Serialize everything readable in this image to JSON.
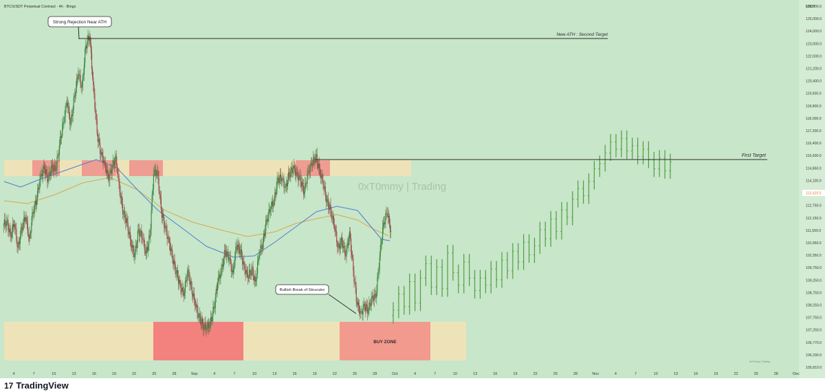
{
  "header": {
    "symbol_line": "BTC/USDT Perpetual Contract · 4h · Bingx",
    "currency": "USDT"
  },
  "brand": {
    "logo_mark": "17",
    "logo_text": "TradingView",
    "watermark": "0xT0mmy | Trading",
    "small_credit": "0xT0mmy | Trading"
  },
  "colors": {
    "background": "#c8e6c9",
    "zone_tan": "#eee3b8",
    "zone_red": "#ef8f8b",
    "zone_red_strong": "#f3827f",
    "ma_blue": "#4a7fd1",
    "ma_orange": "#d9a64e",
    "candle_up": "#3a8a43",
    "candle_down": "#9a4a4a",
    "projection": "#4e9d42",
    "line": "#2b2b2b",
    "price_tag": "#e8773a"
  },
  "chart_data": {
    "type": "candlestick",
    "title": "BTC/USDT Perpetual Contract · 4h · Bingx",
    "y_axis": {
      "unit": "USDT",
      "ylim": [
        105810,
        126000
      ],
      "ticks": [
        "126,000.0",
        "125,000.0",
        "124,000.0",
        "123,000.0",
        "122,000.0",
        "121,200.0",
        "120,400.0",
        "119,600.0",
        "118,800.0",
        "118,000.0",
        "117,200.0",
        "116,400.0",
        "115,600.0",
        "114,850.0",
        "114,100.0",
        "113,420.5",
        "112,750.0",
        "112,150.0",
        "111,550.0",
        "110,950.0",
        "110,350.0",
        "109,750.0",
        "109,250.0",
        "108,750.0",
        "108,250.0",
        "107,750.0",
        "107,250.0",
        "106,770.0",
        "106,290.0",
        "105,810.0"
      ]
    },
    "x_axis": {
      "ticks": [
        "4",
        "7",
        "10",
        "13",
        "16",
        "19",
        "22",
        "25",
        "28",
        "Sep",
        "4",
        "7",
        "10",
        "13",
        "16",
        "19",
        "22",
        "25",
        "28",
        "Oct",
        "4",
        "7",
        "10",
        "13",
        "16",
        "19",
        "22",
        "25",
        "28",
        "Nov",
        "4",
        "7",
        "10",
        "13",
        "16",
        "19",
        "22",
        "25",
        "28",
        "Dec"
      ]
    },
    "current_price": "113,420.5",
    "levels": [
      {
        "label": "New ATH : Second Target",
        "price": 124350
      },
      {
        "label": "First Target",
        "price": 117250
      }
    ],
    "annotations": [
      {
        "label": "Strong Rejection Near ATH"
      },
      {
        "label": "Bullish Break of Strucutre"
      },
      {
        "label": "BUY ZONE"
      }
    ],
    "zones": [
      {
        "name": "resistance-band",
        "from": 116250,
        "to": 117300
      },
      {
        "name": "support-band",
        "from": 106250,
        "to": 108450
      }
    ],
    "candle_closes": [
      114000,
      113200,
      113800,
      112500,
      113600,
      114200,
      113000,
      114500,
      115200,
      116600,
      116900,
      116300,
      117100,
      116800,
      118200,
      119500,
      120600,
      119400,
      121000,
      122200,
      121500,
      123800,
      124300,
      121600,
      118900,
      117700,
      117300,
      116300,
      117000,
      117600,
      115600,
      114400,
      113900,
      112600,
      112100,
      113500,
      113000,
      112200,
      113100,
      116600,
      116800,
      114600,
      113600,
      113000,
      111900,
      111100,
      110500,
      109800,
      111200,
      110300,
      109300,
      108700,
      108200,
      107900,
      108300,
      109100,
      110500,
      111300,
      112300,
      111900,
      111100,
      112600,
      112300,
      111500,
      110800,
      111300,
      110600,
      112100,
      112800,
      114100,
      114600,
      115200,
      116400,
      116300,
      115900,
      116600,
      116900,
      116700,
      116200,
      115600,
      116800,
      117100,
      117600,
      116900,
      116000,
      115100,
      114600,
      113600,
      112500,
      112900,
      112000,
      113400,
      111200,
      109300,
      108900,
      109200,
      109000,
      109800,
      109700,
      112000,
      113900,
      114400,
      113420
    ],
    "projection_closes": [
      109000,
      109900,
      109200,
      110600,
      109400,
      110800,
      111600,
      110300,
      111400,
      110200,
      112200,
      111100,
      110400,
      111700,
      110800,
      110100,
      110800,
      110400,
      111300,
      110700,
      111800,
      111200,
      112300,
      111700,
      112800,
      112100,
      112600,
      113500,
      113000,
      114100,
      113400,
      114600,
      114200,
      115200,
      115800,
      115400,
      116200,
      116900,
      117200,
      117800,
      118400,
      118000,
      118600,
      117900,
      118200,
      117600,
      118000,
      117400,
      116900,
      117500,
      116800,
      117300
    ]
  }
}
